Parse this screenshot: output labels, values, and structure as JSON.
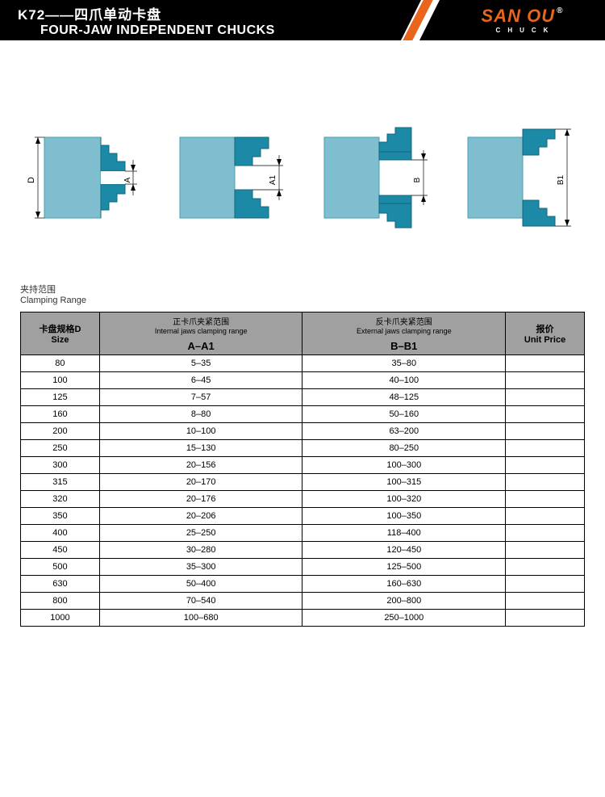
{
  "header": {
    "model": "K72——四爪单动卡盘",
    "subtitle": "FOUR-JAW INDEPENDENT CHUCKS",
    "brand": "SAN OU",
    "brand_sub": "CHUCK"
  },
  "diagrams": {
    "labels": [
      "D",
      "A",
      "A1",
      "B",
      "B1"
    ],
    "colors": {
      "body": "#7fbecf",
      "jaw": "#1c8aa6",
      "stroke": "#4a9db5"
    }
  },
  "section": {
    "title_cn": "夹持范围",
    "title_en": "Clamping Range"
  },
  "table": {
    "head": {
      "size_cn": "卡盘规格D",
      "size_en": "Size",
      "internal_cn": "正卡爪夹紧范围",
      "internal_en": "Internal jaws clamping range",
      "internal_code": "A–A1",
      "external_cn": "反卡爪夹紧范围",
      "external_en": "External jaws clamping range",
      "external_code": "B–B1",
      "price_cn": "报价",
      "price_en": "Unit Price"
    },
    "rows": [
      {
        "size": "80",
        "a": "5–35",
        "b": "35–80",
        "p": ""
      },
      {
        "size": "100",
        "a": "6–45",
        "b": "40–100",
        "p": ""
      },
      {
        "size": "125",
        "a": "7–57",
        "b": "48–125",
        "p": ""
      },
      {
        "size": "160",
        "a": "8–80",
        "b": "50–160",
        "p": ""
      },
      {
        "size": "200",
        "a": "10–100",
        "b": "63–200",
        "p": ""
      },
      {
        "size": "250",
        "a": "15–130",
        "b": "80–250",
        "p": ""
      },
      {
        "size": "300",
        "a": "20–156",
        "b": "100–300",
        "p": ""
      },
      {
        "size": "315",
        "a": "20–170",
        "b": "100–315",
        "p": ""
      },
      {
        "size": "320",
        "a": "20–176",
        "b": "100–320",
        "p": ""
      },
      {
        "size": "350",
        "a": "20–206",
        "b": "100–350",
        "p": ""
      },
      {
        "size": "400",
        "a": "25–250",
        "b": "118–400",
        "p": ""
      },
      {
        "size": "450",
        "a": "30–280",
        "b": "120–450",
        "p": ""
      },
      {
        "size": "500",
        "a": "35–300",
        "b": "125–500",
        "p": ""
      },
      {
        "size": "630",
        "a": "50–400",
        "b": "160–630",
        "p": ""
      },
      {
        "size": "800",
        "a": "70–540",
        "b": "200–800",
        "p": ""
      },
      {
        "size": "1000",
        "a": "100–680",
        "b": "250–1000",
        "p": ""
      }
    ]
  }
}
